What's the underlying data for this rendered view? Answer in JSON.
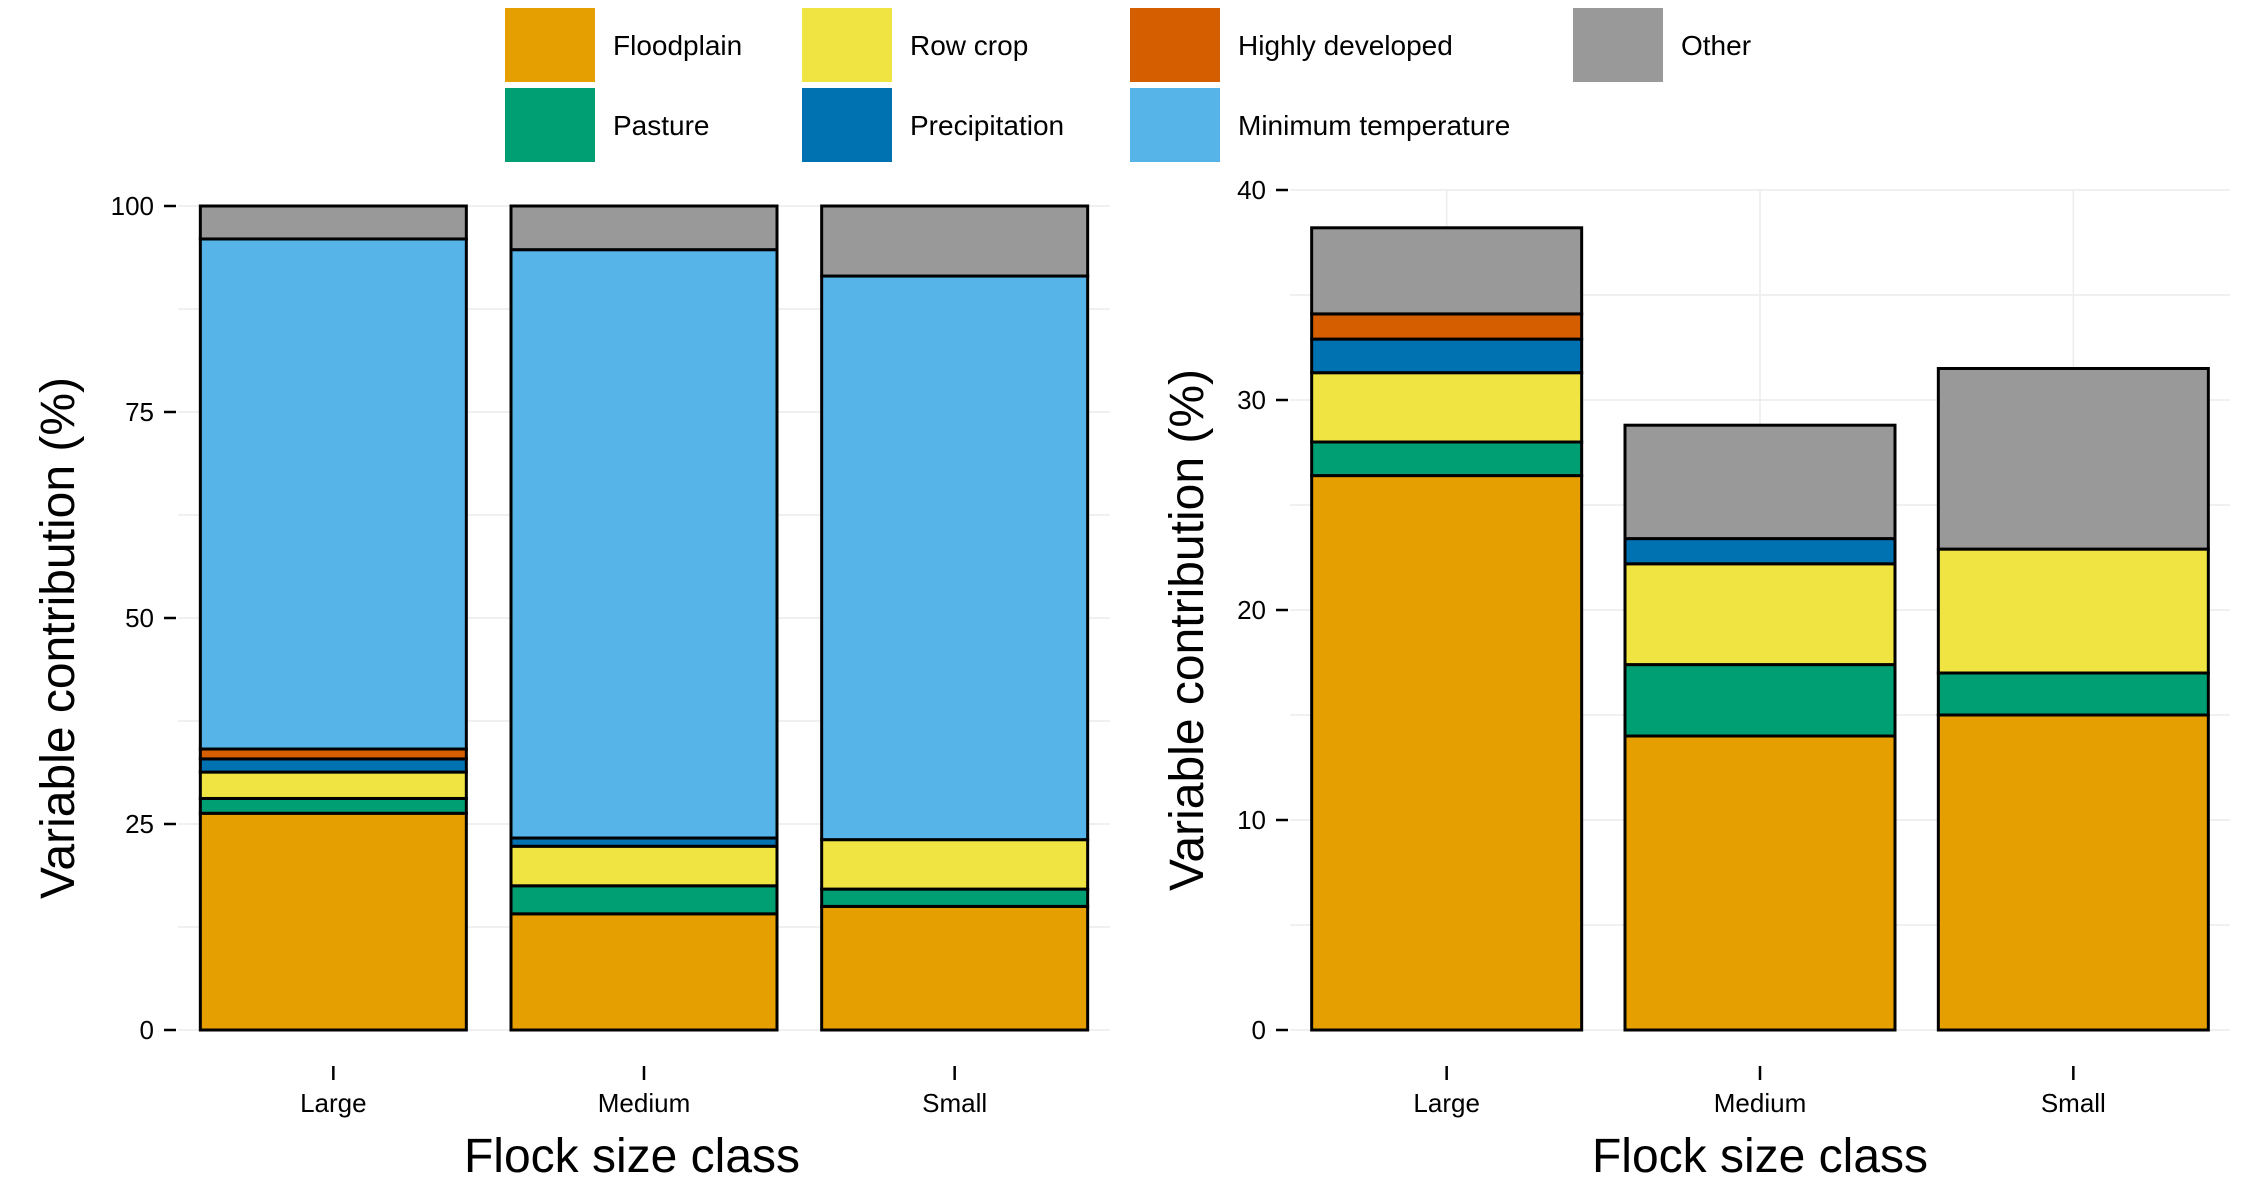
{
  "chart_data": [
    {
      "type": "bar",
      "stacked": true,
      "categories": [
        "Large",
        "Medium",
        "Small"
      ],
      "xlabel": "Flock size class",
      "ylabel": "Variable contribution (%)",
      "ylim": [
        0,
        100
      ],
      "yticks": [
        0,
        25,
        50,
        75,
        100
      ],
      "grid": true,
      "series": [
        {
          "name": "Floodplain",
          "color": "#E69F00",
          "values": [
            26.3,
            14.1,
            15.0
          ]
        },
        {
          "name": "Pasture",
          "color": "#009E73",
          "values": [
            1.8,
            3.4,
            2.1
          ]
        },
        {
          "name": "Row crop",
          "color": "#F0E442",
          "values": [
            3.2,
            4.8,
            6.0
          ]
        },
        {
          "name": "Precipitation",
          "color": "#0072B2",
          "values": [
            1.6,
            1.0,
            0.0
          ]
        },
        {
          "name": "Highly developed",
          "color": "#D55E00",
          "values": [
            1.2,
            0.0,
            0.0
          ]
        },
        {
          "name": "Minimum temperature",
          "color": "#56B4E9",
          "values": [
            61.9,
            71.4,
            68.4
          ]
        },
        {
          "name": "Other",
          "color": "#999999",
          "values": [
            4.0,
            5.3,
            8.5
          ]
        }
      ]
    },
    {
      "type": "bar",
      "stacked": true,
      "categories": [
        "Large",
        "Medium",
        "Small"
      ],
      "xlabel": "Flock size class",
      "ylabel": "Variable contribution (%)",
      "ylim": [
        0,
        40
      ],
      "yticks": [
        0,
        10,
        20,
        30,
        40
      ],
      "grid": true,
      "series": [
        {
          "name": "Floodplain",
          "color": "#E69F00",
          "values": [
            26.4,
            14.0,
            15.0
          ]
        },
        {
          "name": "Pasture",
          "color": "#009E73",
          "values": [
            1.6,
            3.4,
            2.0
          ]
        },
        {
          "name": "Row crop",
          "color": "#F0E442",
          "values": [
            3.3,
            4.8,
            5.9
          ]
        },
        {
          "name": "Precipitation",
          "color": "#0072B2",
          "values": [
            1.6,
            1.2,
            0.0
          ]
        },
        {
          "name": "Highly developed",
          "color": "#D55E00",
          "values": [
            1.2,
            0.0,
            0.0
          ]
        },
        {
          "name": "Other",
          "color": "#999999",
          "values": [
            4.1,
            5.4,
            8.6
          ]
        }
      ]
    }
  ],
  "legend": {
    "placement": "top",
    "items": [
      {
        "label": "Floodplain",
        "color": "#E69F00"
      },
      {
        "label": "Row crop",
        "color": "#F0E442"
      },
      {
        "label": "Highly developed",
        "color": "#D55E00"
      },
      {
        "label": "Other",
        "color": "#999999"
      },
      {
        "label": "Pasture",
        "color": "#009E73"
      },
      {
        "label": "Precipitation",
        "color": "#0072B2"
      },
      {
        "label": "Minimum temperature",
        "color": "#56B4E9"
      }
    ]
  }
}
